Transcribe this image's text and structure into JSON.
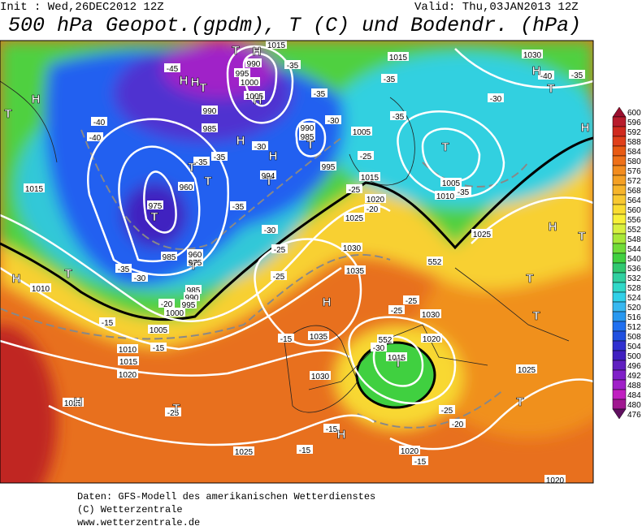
{
  "header": {
    "init": "Init : Wed,26DEC2012 12Z",
    "valid": "Valid: Thu,03JAN2013 12Z",
    "title": "500 hPa Geopot.(gpdm), T (C) und Bodendr. (hPa)"
  },
  "map": {
    "contour_labels": [
      "1015",
      "990",
      "995",
      "1000",
      "1005",
      "-35",
      "1015",
      "1030",
      "-35",
      "-40",
      "-35",
      "-45",
      "-35",
      "-30",
      "-35",
      "990",
      "985",
      "-30",
      "990",
      "985",
      "1005",
      "-40",
      "-40",
      "-30",
      "-35",
      "-35",
      "995",
      "-25",
      "994",
      "960",
      "1015",
      "1005",
      "-35",
      "1010",
      "1015",
      "-25",
      "1020",
      "-20",
      "-35",
      "975",
      "1025",
      "-30",
      "1025",
      "-25",
      "1030",
      "985",
      "960",
      "975",
      "552",
      "-35",
      "-30",
      "1035",
      "-25",
      "1010",
      "985",
      "990",
      "-20",
      "995",
      "-25",
      "1000",
      "-25",
      "1030",
      "-15",
      "1005",
      "552",
      "1035",
      "-15",
      "1020",
      "-15",
      "1010",
      "-30",
      "1015",
      "1015",
      "1020",
      "1030",
      "1025",
      "1025",
      "-25",
      "-25",
      "-20",
      "-15",
      "-15",
      "1025",
      "1020",
      "-15",
      "1020"
    ],
    "pressure_centers": [
      "T",
      "H",
      "H",
      "H",
      "T",
      "T",
      "H",
      "H",
      "T",
      "T",
      "T",
      "T",
      "T",
      "T",
      "T",
      "H",
      "H",
      "H",
      "T",
      "T",
      "H",
      "T",
      "T",
      "H",
      "H",
      "T",
      "T",
      "H",
      "T",
      "H",
      "H",
      "T"
    ]
  },
  "legend": {
    "levels": [
      "600",
      "596",
      "592",
      "588",
      "584",
      "580",
      "576",
      "572",
      "568",
      "564",
      "560",
      "556",
      "552",
      "548",
      "544",
      "540",
      "536",
      "532",
      "528",
      "524",
      "520",
      "516",
      "512",
      "508",
      "504",
      "500",
      "496",
      "492",
      "488",
      "484",
      "480",
      "476"
    ]
  },
  "footer": {
    "lines": [
      "Daten: GFS-Modell des amerikanischen Wetterdienstes",
      "(C) Wetterzentrale",
      "www.wetterzentrale.de"
    ]
  }
}
